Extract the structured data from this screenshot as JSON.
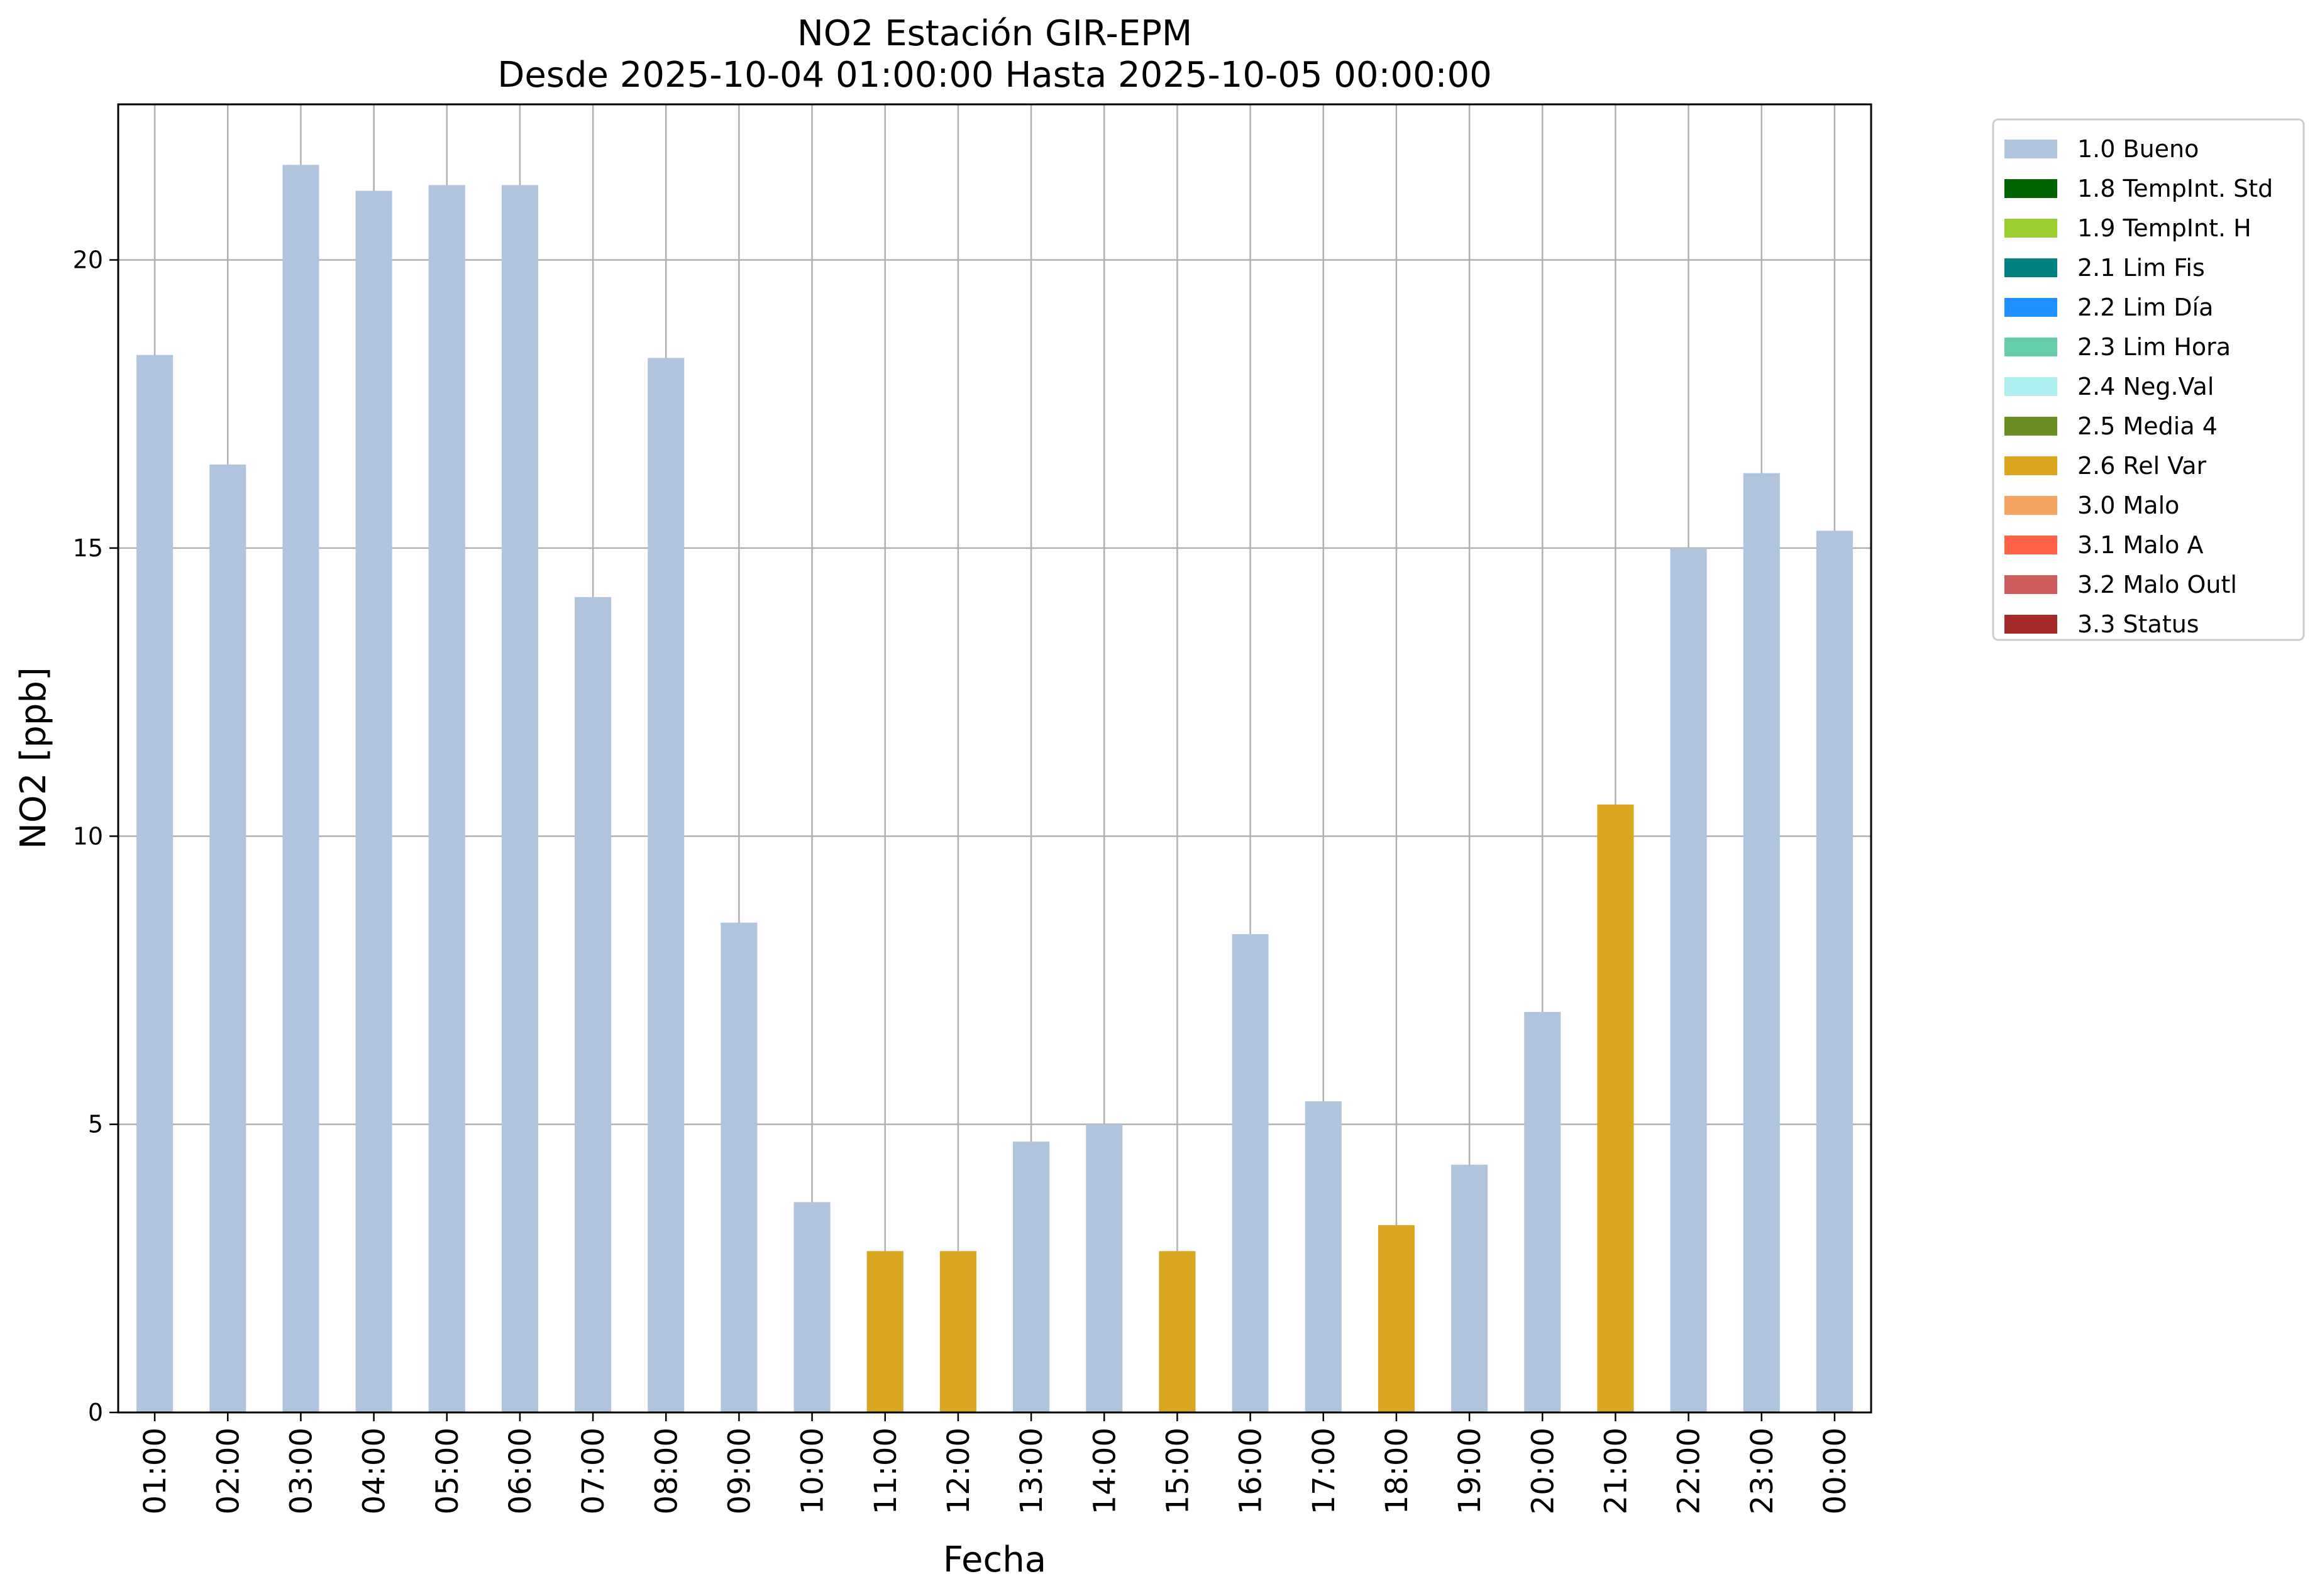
{
  "chart_data": {
    "type": "bar",
    "title": "NO2 Estación GIR-EPM",
    "subtitle": "Desde 2025-10-04 01:00:00 Hasta 2025-10-05 00:00:00",
    "xlabel": "Fecha",
    "ylabel": "NO2 [ppb]",
    "ylim": [
      0,
      22.7
    ],
    "yticks": [
      0,
      5,
      10,
      15,
      20
    ],
    "grid": true,
    "legend_position": "outside-top-right",
    "categories": [
      "01:00",
      "02:00",
      "03:00",
      "04:00",
      "05:00",
      "06:00",
      "07:00",
      "08:00",
      "09:00",
      "10:00",
      "11:00",
      "12:00",
      "13:00",
      "14:00",
      "15:00",
      "16:00",
      "17:00",
      "18:00",
      "19:00",
      "20:00",
      "21:00",
      "22:00",
      "23:00",
      "00:00"
    ],
    "values": [
      18.35,
      16.45,
      21.65,
      21.2,
      21.3,
      21.3,
      14.15,
      18.3,
      8.5,
      3.65,
      2.8,
      2.8,
      4.7,
      5.0,
      2.8,
      8.3,
      5.4,
      3.25,
      4.3,
      6.95,
      10.55,
      15.0,
      16.3,
      15.3
    ],
    "flags": [
      "1.0 Bueno",
      "1.0 Bueno",
      "1.0 Bueno",
      "1.0 Bueno",
      "1.0 Bueno",
      "1.0 Bueno",
      "1.0 Bueno",
      "1.0 Bueno",
      "1.0 Bueno",
      "1.0 Bueno",
      "2.6 Rel Var",
      "2.6 Rel Var",
      "1.0 Bueno",
      "1.0 Bueno",
      "2.6 Rel Var",
      "1.0 Bueno",
      "1.0 Bueno",
      "2.6 Rel Var",
      "1.0 Bueno",
      "1.0 Bueno",
      "2.6 Rel Var",
      "1.0 Bueno",
      "1.0 Bueno",
      "1.0 Bueno"
    ],
    "legend": [
      {
        "label": "1.0 Bueno",
        "color": "#B0C4DE"
      },
      {
        "label": "1.8 TempInt. Std",
        "color": "#006400"
      },
      {
        "label": "1.9 TempInt. H",
        "color": "#9ACD32"
      },
      {
        "label": "2.1 Lim Fis",
        "color": "#008080"
      },
      {
        "label": "2.2 Lim Día",
        "color": "#1E90FF"
      },
      {
        "label": "2.3 Lim Hora",
        "color": "#66CDAA"
      },
      {
        "label": "2.4 Neg.Val",
        "color": "#AFEEEE"
      },
      {
        "label": "2.5 Media 4",
        "color": "#6B8E23"
      },
      {
        "label": "2.6 Rel Var",
        "color": "#DAA520"
      },
      {
        "label": "3.0 Malo",
        "color": "#F4A460"
      },
      {
        "label": "3.1 Malo A",
        "color": "#FF6347"
      },
      {
        "label": "3.2 Malo Outl",
        "color": "#CD5C5C"
      },
      {
        "label": "3.3 Status",
        "color": "#A52A2A"
      }
    ]
  }
}
